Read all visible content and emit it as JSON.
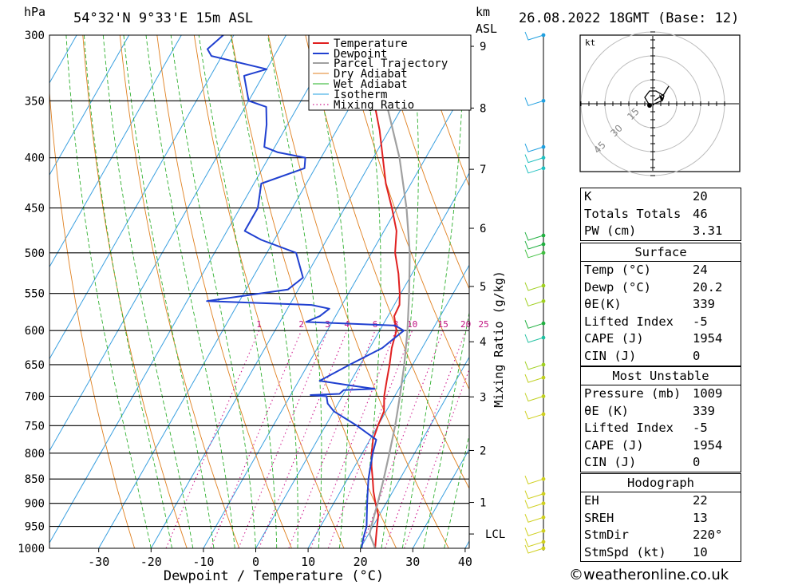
{
  "header": {
    "location": "54°32'N  9°33'E  15m  ASL",
    "datetime": "26.08.2022  18GMT  (Base: 12)",
    "hpa_label": "hPa",
    "km_label": "km",
    "asl_label": "ASL"
  },
  "footer": {
    "copyright": "©weatheronline.co.uk"
  },
  "chart_data": {
    "type": "line",
    "title": "",
    "xlabel": "Dewpoint / Temperature (°C)",
    "ylabel": "hPa",
    "right_axis_label": "Mixing Ratio (g/kg)",
    "xlim": [
      -40,
      40
    ],
    "ylim": [
      1000,
      300
    ],
    "x_ticks": [
      "-30",
      "-20",
      "-10",
      "0",
      "10",
      "20",
      "30",
      "40"
    ],
    "pressure_levels": [
      "300",
      "350",
      "400",
      "450",
      "500",
      "550",
      "600",
      "650",
      "700",
      "750",
      "800",
      "850",
      "900",
      "950",
      "1000"
    ],
    "km_ticks": [
      {
        "km": "9",
        "p": 308
      },
      {
        "km": "8",
        "p": 356
      },
      {
        "km": "7",
        "p": 411
      },
      {
        "km": "6",
        "p": 472
      },
      {
        "km": "5",
        "p": 541
      },
      {
        "km": "4",
        "p": 616
      },
      {
        "km": "3",
        "p": 701
      },
      {
        "km": "2",
        "p": 795
      },
      {
        "km": "1",
        "p": 898
      }
    ],
    "lcl": {
      "label": "LCL",
      "p": 967
    },
    "mixing_ratio_labels": [
      "1",
      "2",
      "3",
      "4",
      "6",
      "8",
      "10",
      "15",
      "20",
      "25"
    ],
    "legend": [
      "Temperature",
      "Dewpoint",
      "Parcel Trajectory",
      "Dry Adiabat",
      "Wet Adiabat",
      "Isotherm",
      "Mixing Ratio"
    ],
    "series": [
      {
        "name": "Temperature",
        "color": "#e02020",
        "points": [
          [
            1000,
            22.8
          ],
          [
            975,
            21.8
          ],
          [
            950,
            20.8
          ],
          [
            925,
            19.8
          ],
          [
            900,
            18.0
          ],
          [
            875,
            16.3
          ],
          [
            850,
            14.8
          ],
          [
            825,
            13.2
          ],
          [
            800,
            11.8
          ],
          [
            775,
            10.6
          ],
          [
            750,
            10.0
          ],
          [
            725,
            9.6
          ],
          [
            700,
            8.0
          ],
          [
            675,
            6.8
          ],
          [
            650,
            5.6
          ],
          [
            625,
            4.2
          ],
          [
            600,
            3.2
          ],
          [
            580,
            1.2
          ],
          [
            565,
            1.0
          ],
          [
            550,
            -0.2
          ],
          [
            525,
            -2.6
          ],
          [
            500,
            -5.5
          ],
          [
            475,
            -7.6
          ],
          [
            450,
            -11.0
          ],
          [
            425,
            -14.8
          ],
          [
            400,
            -18.2
          ],
          [
            375,
            -21.8
          ],
          [
            355,
            -25.2
          ],
          [
            340,
            -28.8
          ],
          [
            320,
            -33.2
          ],
          [
            300,
            -38.0
          ]
        ]
      },
      {
        "name": "Dewpoint",
        "color": "#2040d0",
        "points": [
          [
            1000,
            20.2
          ],
          [
            975,
            19.4
          ],
          [
            950,
            18.8
          ],
          [
            925,
            17.6
          ],
          [
            900,
            16.4
          ],
          [
            875,
            15.2
          ],
          [
            850,
            14.0
          ],
          [
            825,
            13.0
          ],
          [
            800,
            12.0
          ],
          [
            775,
            11.2
          ],
          [
            750,
            6.0
          ],
          [
            725,
            0.0
          ],
          [
            712,
            -2.0
          ],
          [
            700,
            -3.0
          ],
          [
            698,
            -6.2
          ],
          [
            696,
            -0.8
          ],
          [
            690,
            -0.4
          ],
          [
            688,
            5.4
          ],
          [
            682,
            0.0
          ],
          [
            675,
            -6.0
          ],
          [
            650,
            -2.0
          ],
          [
            625,
            2.4
          ],
          [
            600,
            4.6
          ],
          [
            593,
            2.4
          ],
          [
            588,
            -15.0
          ],
          [
            580,
            -13.0
          ],
          [
            570,
            -12.0
          ],
          [
            565,
            -15.8
          ],
          [
            560,
            -36.2
          ],
          [
            545,
            -22.0
          ],
          [
            530,
            -20.4
          ],
          [
            500,
            -24.4
          ],
          [
            485,
            -32.5
          ],
          [
            475,
            -36.6
          ],
          [
            450,
            -36.6
          ],
          [
            425,
            -38.6
          ],
          [
            410,
            -32.0
          ],
          [
            400,
            -33.0
          ],
          [
            395,
            -38.8
          ],
          [
            390,
            -42.0
          ],
          [
            380,
            -43.0
          ],
          [
            370,
            -44.0
          ],
          [
            355,
            -46.0
          ],
          [
            350,
            -50.0
          ],
          [
            330,
            -53.6
          ],
          [
            325,
            -50.0
          ],
          [
            315,
            -62.0
          ],
          [
            310,
            -63.5
          ],
          [
            300,
            -62.0
          ]
        ]
      },
      {
        "name": "Parcel Trajectory",
        "color": "#a0a0a0",
        "points": [
          [
            1000,
            22.8
          ],
          [
            967,
            20.2
          ],
          [
            950,
            19.7
          ],
          [
            900,
            18.4
          ],
          [
            850,
            16.9
          ],
          [
            800,
            15.2
          ],
          [
            750,
            13.3
          ],
          [
            700,
            11.0
          ],
          [
            650,
            8.4
          ],
          [
            600,
            5.3
          ],
          [
            550,
            1.6
          ],
          [
            500,
            -2.7
          ],
          [
            450,
            -8.2
          ],
          [
            400,
            -15.0
          ],
          [
            350,
            -23.8
          ],
          [
            300,
            -35.0
          ]
        ]
      }
    ]
  },
  "indices": {
    "rows": [
      {
        "label": "K",
        "value": "20"
      },
      {
        "label": "Totals Totals",
        "value": "46"
      },
      {
        "label": "PW (cm)",
        "value": "3.31"
      }
    ]
  },
  "surface": {
    "title": "Surface",
    "rows": [
      {
        "label": "Temp (°C)",
        "value": "24"
      },
      {
        "label": "Dewp (°C)",
        "value": "20.2"
      },
      {
        "label": "θE(K)",
        "value": "339"
      },
      {
        "label": "Lifted Index",
        "value": "-5"
      },
      {
        "label": "CAPE (J)",
        "value": "1954"
      },
      {
        "label": "CIN (J)",
        "value": "0"
      }
    ]
  },
  "most_unstable": {
    "title": "Most Unstable",
    "rows": [
      {
        "label": "Pressure (mb)",
        "value": "1009"
      },
      {
        "label": "θE (K)",
        "value": "339"
      },
      {
        "label": "Lifted Index",
        "value": "-5"
      },
      {
        "label": "CAPE (J)",
        "value": "1954"
      },
      {
        "label": "CIN (J)",
        "value": "0"
      }
    ]
  },
  "hodograph_table": {
    "title": "Hodograph",
    "rows": [
      {
        "label": "EH",
        "value": "22"
      },
      {
        "label": "SREH",
        "value": "13"
      },
      {
        "label": "StmDir",
        "value": "220°"
      },
      {
        "label": "StmSpd (kt)",
        "value": "10"
      }
    ]
  },
  "hodograph": {
    "unit": "kt",
    "rings": [
      "15",
      "30",
      "45"
    ]
  }
}
